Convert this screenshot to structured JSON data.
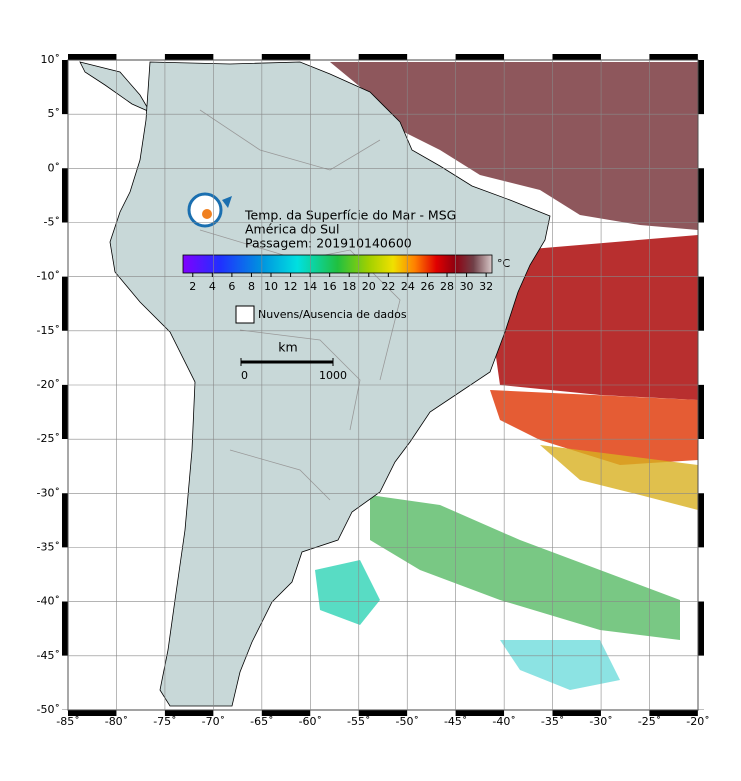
{
  "map": {
    "title_lines": [
      "Temp. da Superfície do Mar - MSG",
      "América do Sul",
      "Passagem: 201910140600"
    ],
    "colorbar": {
      "range": [
        1,
        32.6
      ],
      "ticks": [
        2,
        4,
        6,
        8,
        10,
        12,
        14,
        16,
        18,
        20,
        22,
        24,
        26,
        28,
        30,
        32
      ],
      "unit": "°C"
    },
    "legend": {
      "label": "Nuvens/Ausencia de dados"
    },
    "scale_bar": {
      "unit": "km",
      "ticks": [
        0,
        1000
      ]
    },
    "xlim": [
      -85,
      -20
    ],
    "ylim": [
      -50,
      10
    ],
    "xticks": [
      {
        "value": -85,
        "label": "-85˚"
      },
      {
        "value": -80,
        "label": "-80˚"
      },
      {
        "value": -75,
        "label": "-75˚"
      },
      {
        "value": -70,
        "label": "-70˚"
      },
      {
        "value": -65,
        "label": "-65˚"
      },
      {
        "value": -60,
        "label": "-60˚"
      },
      {
        "value": -55,
        "label": "-55˚"
      },
      {
        "value": -50,
        "label": "-50˚"
      },
      {
        "value": -45,
        "label": "-45˚"
      },
      {
        "value": -40,
        "label": "-40˚"
      },
      {
        "value": -35,
        "label": "-35˚"
      },
      {
        "value": -30,
        "label": "-30˚"
      },
      {
        "value": -25,
        "label": "-25˚"
      },
      {
        "value": -20,
        "label": "-20˚"
      }
    ],
    "yticks": [
      {
        "value": 10,
        "label": "10˚"
      },
      {
        "value": 5,
        "label": "5˚"
      },
      {
        "value": 0,
        "label": "0˚"
      },
      {
        "value": -5,
        "label": "-5˚"
      },
      {
        "value": -10,
        "label": "-10˚"
      },
      {
        "value": -15,
        "label": "-15˚"
      },
      {
        "value": -20,
        "label": "-20˚"
      },
      {
        "value": -25,
        "label": "-25˚"
      },
      {
        "value": -30,
        "label": "-30˚"
      },
      {
        "value": -35,
        "label": "-35˚"
      },
      {
        "value": -40,
        "label": "-40˚"
      },
      {
        "value": -45,
        "label": "-45˚"
      },
      {
        "value": -50,
        "label": "-50˚"
      }
    ]
  }
}
